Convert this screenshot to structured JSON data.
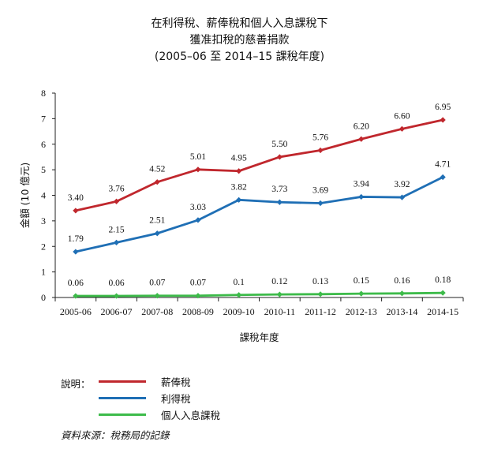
{
  "chart_data": {
    "type": "line",
    "title_lines": [
      "在利得稅、薪俸稅和個人入息課稅下",
      "獲准扣稅的慈善捐款",
      "(2005–06 至 2014–15 課稅年度)"
    ],
    "xlabel": "課稅年度",
    "ylabel": "金額 (10 億元)",
    "categories": [
      "2005-06",
      "2006-07",
      "2007-08",
      "2008-09",
      "2009-10",
      "2010-11",
      "2011-12",
      "2012-13",
      "2013-14",
      "2014-15"
    ],
    "yticks": [
      "0",
      "1",
      "2",
      "3",
      "4",
      "5",
      "6",
      "7",
      "8"
    ],
    "ylim": [
      0,
      8
    ],
    "grid": false,
    "legend_position": "bottom-left",
    "series": [
      {
        "name": "薪俸稅",
        "color": "#c0272d",
        "values": [
          3.4,
          3.76,
          4.52,
          5.01,
          4.95,
          5.5,
          5.76,
          6.2,
          6.6,
          6.95
        ],
        "labels": [
          "3.40",
          "3.76",
          "4.52",
          "5.01",
          "4.95",
          "5.50",
          "5.76",
          "6.20",
          "6.60",
          "6.95"
        ]
      },
      {
        "name": "利得稅",
        "color": "#1f6fb5",
        "values": [
          1.79,
          2.15,
          2.51,
          3.03,
          3.82,
          3.73,
          3.69,
          3.94,
          3.92,
          4.71
        ],
        "labels": [
          "1.79",
          "2.15",
          "2.51",
          "3.03",
          "3.82",
          "3.73",
          "3.69",
          "3.94",
          "3.92",
          "4.71"
        ]
      },
      {
        "name": "個人入息課稅",
        "color": "#3dbb4a",
        "values": [
          0.06,
          0.06,
          0.07,
          0.07,
          0.1,
          0.12,
          0.13,
          0.15,
          0.16,
          0.18
        ],
        "labels": [
          "0.06",
          "0.06",
          "0.07",
          "0.07",
          "0.1",
          "0.12",
          "0.13",
          "0.15",
          "0.16",
          "0.18"
        ]
      }
    ]
  },
  "legend": {
    "title": "說明："
  },
  "source": "資料來源：稅務局的記錄"
}
